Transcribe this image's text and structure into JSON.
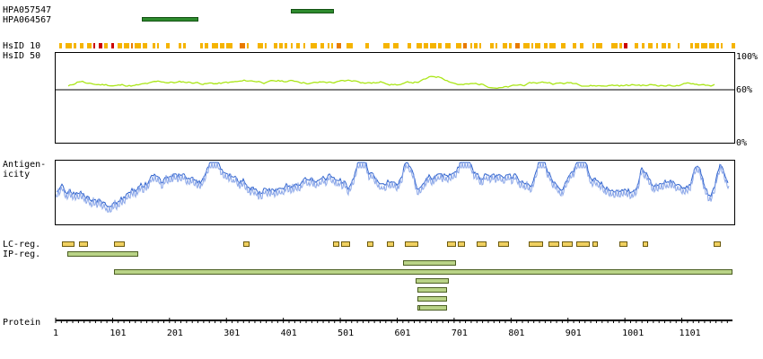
{
  "antibodies": [
    {
      "name": "HPA057547",
      "start": 414,
      "end": 490
    },
    {
      "name": "HPA064567",
      "start": 152,
      "end": 252
    }
  ],
  "hsid": {
    "label_10": "HsID 10",
    "label_50": "HsID 50",
    "max_label": "100%",
    "mid_label": "60%",
    "min_label": "0%"
  },
  "antigenicity": {
    "label": "Antigen-\nicity"
  },
  "regions": {
    "lc_label": "LC-reg.",
    "ip_label": "IP-reg.",
    "lc": [
      [
        12,
        34
      ],
      [
        42,
        58
      ],
      [
        104,
        122
      ],
      [
        330,
        342
      ],
      [
        488,
        500
      ],
      [
        502,
        518
      ],
      [
        548,
        560
      ],
      [
        583,
        596
      ],
      [
        614,
        638
      ],
      [
        689,
        705
      ],
      [
        708,
        720
      ],
      [
        741,
        758
      ],
      [
        778,
        797
      ],
      [
        832,
        857
      ],
      [
        867,
        886
      ],
      [
        890,
        909
      ],
      [
        915,
        940
      ],
      [
        944,
        950
      ],
      [
        992,
        1006
      ],
      [
        1032,
        1038
      ],
      [
        1157,
        1170
      ]
    ],
    "ip": [
      [
        22,
        146
      ],
      [
        612,
        704
      ],
      [
        104,
        1190
      ],
      [
        634,
        692
      ],
      [
        637,
        688
      ],
      [
        637,
        688
      ],
      [
        637,
        688
      ],
      [
        639,
        688
      ]
    ]
  },
  "protein": {
    "label": "Protein",
    "ticks": [
      "1",
      "101",
      "201",
      "301",
      "401",
      "501",
      "601",
      "701",
      "801",
      "901",
      "1001",
      "1101"
    ],
    "length": 1190
  },
  "colors": {
    "antibody": "#2e8b2e",
    "identity_line": "#aae617",
    "antigen_line": "#2a5fcc",
    "lc": "#f0d060",
    "ip": "#b9d387",
    "hsid_low": "#f5b400",
    "hsid_high": "#cc0000"
  }
}
